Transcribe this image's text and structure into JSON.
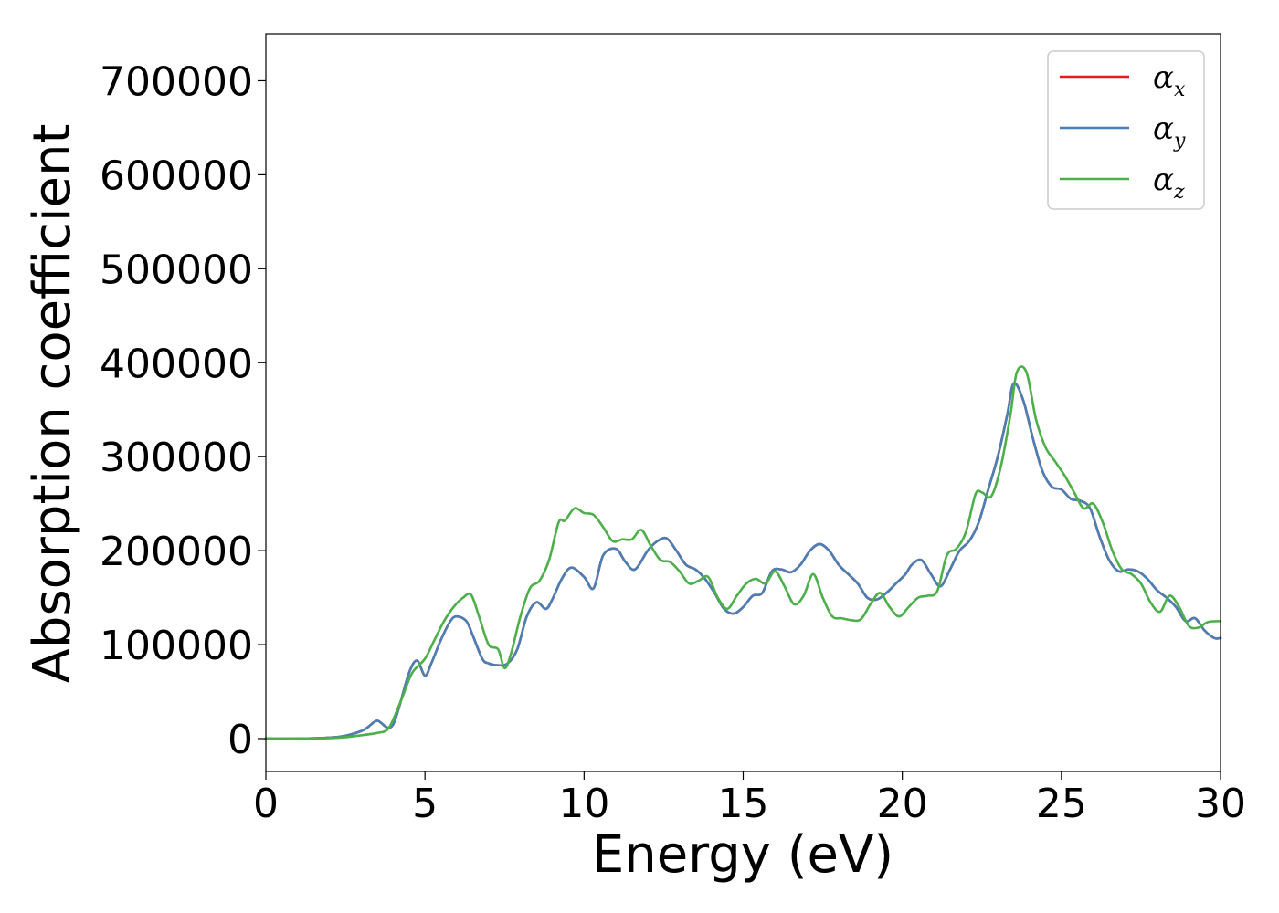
{
  "chart_data": {
    "type": "line",
    "title": "",
    "xlabel": "Energy (eV)",
    "ylabel": "Absorption coefficient",
    "xlim": [
      0,
      30
    ],
    "ylim": [
      -35000,
      750000
    ],
    "xticks": [
      0,
      5,
      10,
      15,
      20,
      25,
      30
    ],
    "yticks": [
      0,
      100000,
      200000,
      300000,
      400000,
      500000,
      600000,
      700000
    ],
    "grid": false,
    "legend_position": "top-right",
    "series": [
      {
        "name": "αx",
        "legend_base": "α",
        "legend_sub": "x",
        "color": "#e41a1c",
        "x": [
          0,
          1,
          2,
          2.5,
          3.0,
          3.2,
          3.5,
          3.8,
          4.0,
          4.2,
          4.5,
          4.75,
          5.0,
          5.2,
          5.5,
          5.8,
          6.0,
          6.3,
          6.5,
          6.8,
          7.0,
          7.3,
          7.6,
          7.9,
          8.2,
          8.5,
          8.8,
          9.0,
          9.3,
          9.6,
          10.0,
          10.3,
          10.6,
          11.0,
          11.3,
          11.6,
          12.0,
          12.3,
          12.6,
          12.9,
          13.2,
          13.5,
          13.8,
          14.1,
          14.4,
          14.7,
          15.0,
          15.3,
          15.6,
          15.9,
          16.2,
          16.5,
          16.8,
          17.1,
          17.4,
          17.7,
          18.0,
          18.3,
          18.6,
          18.9,
          19.2,
          19.5,
          19.8,
          20.1,
          20.3,
          20.6,
          20.9,
          21.2,
          21.5,
          21.8,
          22.1,
          22.4,
          22.7,
          23.0,
          23.3,
          23.5,
          23.8,
          24.1,
          24.4,
          24.7,
          25.0,
          25.3,
          25.6,
          25.9,
          26.2,
          26.5,
          26.8,
          27.1,
          27.4,
          27.7,
          28.0,
          28.3,
          28.6,
          28.9,
          29.2,
          29.5,
          29.8,
          30.0
        ],
        "y": [
          0,
          0,
          1000,
          3000,
          8000,
          12000,
          19000,
          12000,
          15000,
          35000,
          70000,
          83000,
          67000,
          80000,
          105000,
          125000,
          130000,
          125000,
          110000,
          85000,
          80000,
          78000,
          80000,
          95000,
          130000,
          145000,
          138000,
          148000,
          170000,
          182000,
          172000,
          160000,
          195000,
          202000,
          188000,
          180000,
          200000,
          210000,
          213000,
          200000,
          185000,
          180000,
          170000,
          155000,
          138000,
          133000,
          140000,
          152000,
          155000,
          178000,
          180000,
          177000,
          185000,
          200000,
          207000,
          200000,
          185000,
          175000,
          165000,
          150000,
          148000,
          155000,
          165000,
          175000,
          185000,
          190000,
          175000,
          162000,
          180000,
          200000,
          210000,
          230000,
          265000,
          300000,
          345000,
          378000,
          360000,
          320000,
          285000,
          268000,
          265000,
          255000,
          253000,
          245000,
          215000,
          190000,
          178000,
          180000,
          178000,
          170000,
          158000,
          150000,
          140000,
          125000,
          128000,
          115000,
          107000,
          107000
        ]
      },
      {
        "name": "αy",
        "legend_base": "α",
        "legend_sub": "y",
        "color": "#4a7fb5",
        "x": [
          0,
          1,
          2,
          2.5,
          3.0,
          3.2,
          3.5,
          3.8,
          4.0,
          4.2,
          4.5,
          4.75,
          5.0,
          5.2,
          5.5,
          5.8,
          6.0,
          6.3,
          6.5,
          6.8,
          7.0,
          7.3,
          7.6,
          7.9,
          8.2,
          8.5,
          8.8,
          9.0,
          9.3,
          9.6,
          10.0,
          10.3,
          10.6,
          11.0,
          11.3,
          11.6,
          12.0,
          12.3,
          12.6,
          12.9,
          13.2,
          13.5,
          13.8,
          14.1,
          14.4,
          14.7,
          15.0,
          15.3,
          15.6,
          15.9,
          16.2,
          16.5,
          16.8,
          17.1,
          17.4,
          17.7,
          18.0,
          18.3,
          18.6,
          18.9,
          19.2,
          19.5,
          19.8,
          20.1,
          20.3,
          20.6,
          20.9,
          21.2,
          21.5,
          21.8,
          22.1,
          22.4,
          22.7,
          23.0,
          23.3,
          23.5,
          23.8,
          24.1,
          24.4,
          24.7,
          25.0,
          25.3,
          25.6,
          25.9,
          26.2,
          26.5,
          26.8,
          27.1,
          27.4,
          27.7,
          28.0,
          28.3,
          28.6,
          28.9,
          29.2,
          29.5,
          29.8,
          30.0
        ],
        "y": [
          0,
          0,
          1000,
          3000,
          8000,
          12000,
          19000,
          12000,
          15000,
          35000,
          70000,
          83000,
          67000,
          80000,
          105000,
          125000,
          130000,
          125000,
          110000,
          85000,
          80000,
          78000,
          80000,
          95000,
          130000,
          145000,
          138000,
          148000,
          170000,
          182000,
          172000,
          160000,
          195000,
          202000,
          188000,
          180000,
          200000,
          210000,
          213000,
          200000,
          185000,
          180000,
          170000,
          155000,
          138000,
          133000,
          140000,
          152000,
          155000,
          178000,
          180000,
          177000,
          185000,
          200000,
          207000,
          200000,
          185000,
          175000,
          165000,
          150000,
          148000,
          155000,
          165000,
          175000,
          185000,
          190000,
          175000,
          162000,
          180000,
          200000,
          210000,
          230000,
          265000,
          300000,
          345000,
          378000,
          360000,
          320000,
          285000,
          268000,
          265000,
          255000,
          253000,
          245000,
          215000,
          190000,
          178000,
          180000,
          178000,
          170000,
          158000,
          150000,
          140000,
          125000,
          128000,
          115000,
          107000,
          107000
        ]
      },
      {
        "name": "αz",
        "legend_base": "α",
        "legend_sub": "z",
        "color": "#4daf4a",
        "x": [
          0,
          1,
          2,
          2.5,
          3.0,
          3.5,
          3.8,
          4.0,
          4.3,
          4.6,
          5.0,
          5.3,
          5.6,
          5.9,
          6.2,
          6.45,
          6.7,
          7.0,
          7.3,
          7.5,
          7.7,
          8.0,
          8.3,
          8.6,
          8.9,
          9.2,
          9.4,
          9.7,
          10.0,
          10.3,
          10.6,
          10.9,
          11.2,
          11.5,
          11.8,
          12.1,
          12.4,
          12.7,
          13.0,
          13.3,
          13.6,
          13.9,
          14.2,
          14.5,
          14.8,
          15.1,
          15.4,
          15.7,
          16.0,
          16.3,
          16.6,
          16.9,
          17.2,
          17.5,
          17.8,
          18.1,
          18.4,
          18.7,
          19.0,
          19.3,
          19.6,
          19.9,
          20.2,
          20.5,
          20.8,
          21.1,
          21.4,
          21.7,
          22.0,
          22.3,
          22.5,
          22.8,
          23.1,
          23.4,
          23.6,
          23.9,
          24.2,
          24.5,
          24.8,
          25.1,
          25.4,
          25.7,
          26.0,
          26.3,
          26.6,
          26.9,
          27.2,
          27.5,
          27.8,
          28.1,
          28.4,
          28.7,
          29.0,
          29.3,
          29.6,
          30.0
        ],
        "y": [
          0,
          0,
          500,
          1500,
          3500,
          6000,
          9000,
          20000,
          45000,
          70000,
          85000,
          105000,
          125000,
          140000,
          150000,
          153000,
          130000,
          100000,
          95000,
          75000,
          90000,
          130000,
          160000,
          168000,
          190000,
          230000,
          232000,
          245000,
          240000,
          238000,
          225000,
          210000,
          212000,
          212000,
          222000,
          205000,
          190000,
          188000,
          178000,
          165000,
          168000,
          172000,
          150000,
          138000,
          152000,
          165000,
          170000,
          165000,
          178000,
          162000,
          143000,
          152000,
          175000,
          150000,
          130000,
          128000,
          126000,
          127000,
          143000,
          155000,
          140000,
          130000,
          140000,
          150000,
          152000,
          157000,
          195000,
          202000,
          220000,
          260000,
          262000,
          258000,
          290000,
          345000,
          390000,
          390000,
          340000,
          310000,
          295000,
          280000,
          262000,
          245000,
          250000,
          230000,
          200000,
          180000,
          175000,
          165000,
          145000,
          135000,
          152000,
          140000,
          120000,
          118000,
          124000,
          125000
        ]
      }
    ]
  }
}
